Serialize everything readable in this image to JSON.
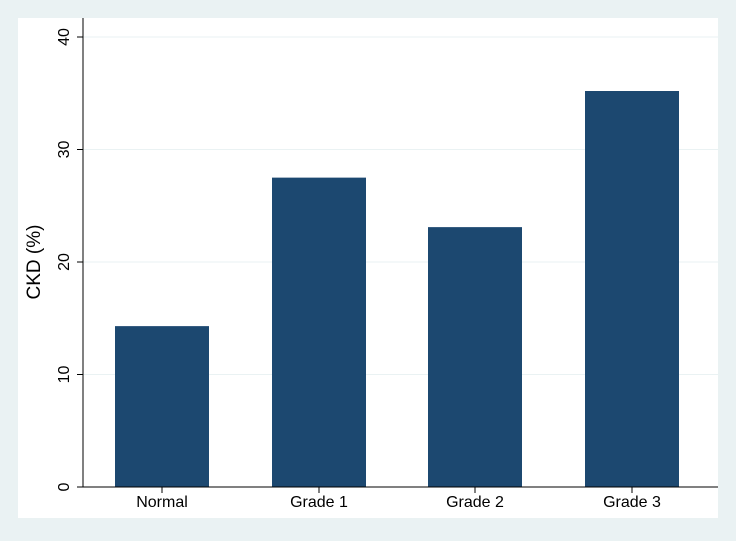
{
  "chart_data": {
    "type": "bar",
    "title": "",
    "xlabel": "",
    "ylabel": "CKD (%)",
    "categories": [
      "Normal",
      "Grade 1",
      "Grade 2",
      "Grade 3"
    ],
    "values": [
      14.3,
      27.5,
      23.1,
      35.2
    ],
    "ylim": [
      0,
      40
    ],
    "yticks": [
      0,
      10,
      20,
      30,
      40
    ],
    "grid": true,
    "legend": "none"
  },
  "colors": {
    "outer_background": "#eaf2f3",
    "plot_background": "#ffffff",
    "bar": "#1c4870",
    "gridline": "#eaf2f3",
    "axis": "#000000"
  }
}
